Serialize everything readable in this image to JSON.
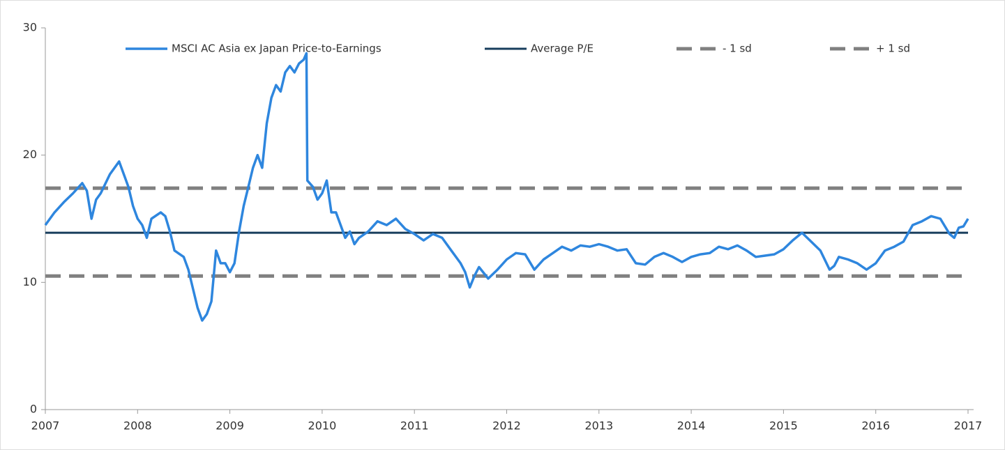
{
  "chart_data": {
    "type": "line",
    "xlim": [
      2007,
      2017
    ],
    "xticks": [
      2007,
      2008,
      2009,
      2010,
      2011,
      2012,
      2013,
      2014,
      2015,
      2016,
      2017
    ],
    "ylim": [
      0,
      30
    ],
    "yticks": [
      0,
      10,
      20,
      30
    ],
    "x": [
      2007.0,
      2007.1,
      2007.2,
      2007.3,
      2007.4,
      2007.45,
      2007.5,
      2007.55,
      2007.6,
      2007.7,
      2007.8,
      2007.85,
      2007.9,
      2007.95,
      2008.0,
      2008.05,
      2008.1,
      2008.15,
      2008.25,
      2008.3,
      2008.35,
      2008.4,
      2008.5,
      2008.55,
      2008.6,
      2008.65,
      2008.7,
      2008.75,
      2008.8,
      2008.85,
      2008.9,
      2008.95,
      2009.0,
      2009.05,
      2009.1,
      2009.15,
      2009.2,
      2009.25,
      2009.3,
      2009.35,
      2009.4,
      2009.45,
      2009.5,
      2009.55,
      2009.6,
      2009.65,
      2009.7,
      2009.75,
      2009.8,
      2009.83,
      2009.84,
      2009.9,
      2009.95,
      2010.0,
      2010.05,
      2010.1,
      2010.15,
      2010.2,
      2010.25,
      2010.3,
      2010.35,
      2010.4,
      2010.5,
      2010.6,
      2010.7,
      2010.8,
      2010.9,
      2011.0,
      2011.1,
      2011.2,
      2011.3,
      2011.4,
      2011.5,
      2011.55,
      2011.6,
      2011.65,
      2011.7,
      2011.8,
      2011.9,
      2012.0,
      2012.1,
      2012.2,
      2012.3,
      2012.4,
      2012.5,
      2012.6,
      2012.7,
      2012.8,
      2012.9,
      2013.0,
      2013.1,
      2013.2,
      2013.3,
      2013.4,
      2013.5,
      2013.6,
      2013.7,
      2013.8,
      2013.9,
      2014.0,
      2014.1,
      2014.2,
      2014.3,
      2014.4,
      2014.5,
      2014.6,
      2014.7,
      2014.8,
      2014.9,
      2015.0,
      2015.1,
      2015.2,
      2015.3,
      2015.4,
      2015.5,
      2015.55,
      2015.6,
      2015.7,
      2015.8,
      2015.9,
      2016.0,
      2016.1,
      2016.2,
      2016.3,
      2016.4,
      2016.5,
      2016.6,
      2016.7,
      2016.8,
      2016.85,
      2016.9,
      2016.95,
      2017.0
    ],
    "series": [
      {
        "name": "MSCI AC Asia ex Japan Price-to-Earnings",
        "color": "#2e86de",
        "values": [
          14.5,
          15.5,
          16.3,
          17.0,
          17.8,
          17.2,
          15.0,
          16.5,
          17.0,
          18.5,
          19.5,
          18.5,
          17.5,
          16.0,
          15.0,
          14.5,
          13.5,
          15.0,
          15.5,
          15.2,
          14.0,
          12.5,
          12.0,
          11.0,
          9.5,
          8.0,
          7.0,
          7.5,
          8.5,
          12.5,
          11.5,
          11.5,
          10.8,
          11.5,
          14.0,
          16.0,
          17.5,
          19.0,
          20.0,
          19.0,
          22.5,
          24.5,
          25.5,
          25.0,
          26.5,
          27.0,
          26.5,
          27.2,
          27.5,
          28.0,
          18.0,
          17.5,
          16.5,
          17.0,
          18.0,
          15.5,
          15.5,
          14.5,
          13.5,
          14.0,
          13.0,
          13.5,
          14.0,
          14.8,
          14.5,
          15.0,
          14.2,
          13.8,
          13.3,
          13.8,
          13.5,
          12.5,
          11.5,
          10.8,
          9.6,
          10.5,
          11.2,
          10.3,
          11.0,
          11.8,
          12.3,
          12.2,
          11.0,
          11.8,
          12.3,
          12.8,
          12.5,
          12.9,
          12.8,
          13.0,
          12.8,
          12.5,
          12.6,
          11.5,
          11.4,
          12.0,
          12.3,
          12.0,
          11.6,
          12.0,
          12.2,
          12.3,
          12.8,
          12.6,
          12.9,
          12.5,
          12.0,
          12.1,
          12.2,
          12.6,
          13.3,
          13.9,
          13.2,
          12.5,
          11.0,
          11.3,
          12.0,
          11.8,
          11.5,
          11.0,
          11.5,
          12.5,
          12.8,
          13.2,
          14.5,
          14.8,
          15.2,
          15.0,
          13.8,
          13.5,
          14.3,
          14.4,
          15.0
        ]
      }
    ],
    "hlines": [
      {
        "name": "Average P/E",
        "color": "#173d5c",
        "value": 13.9,
        "dashed": false
      },
      {
        "name": "- 1 sd",
        "color": "#808080",
        "value": 10.5,
        "dashed": true
      },
      {
        "name": "+ 1 sd",
        "color": "#808080",
        "value": 17.4,
        "dashed": true
      }
    ]
  }
}
